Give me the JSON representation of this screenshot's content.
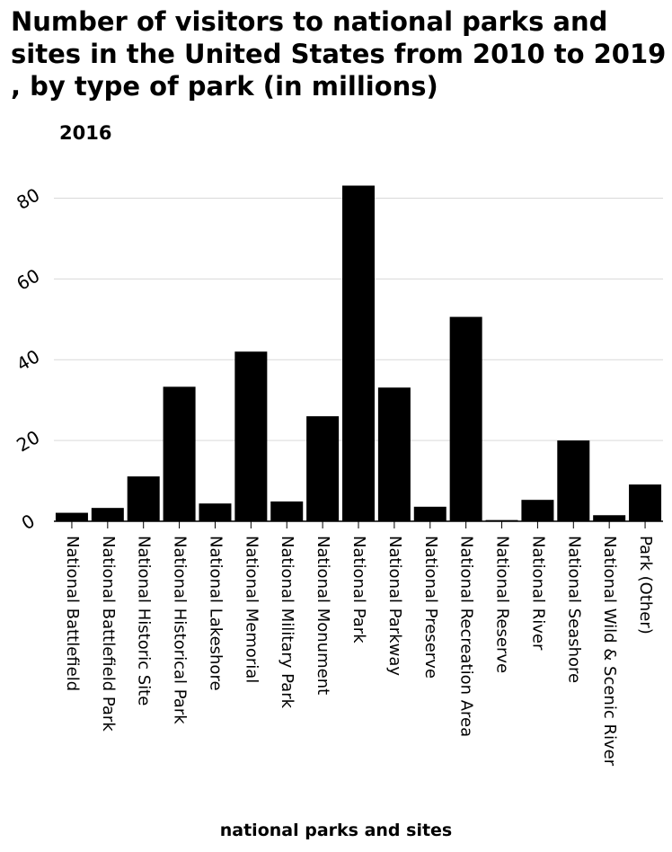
{
  "title": "Number of visitors to national parks and sites in the United States from 2010 to 2019 , by type of park (in millions)",
  "subtitle": "2016",
  "colors": {
    "bar": "#000000",
    "grid": "#d9d9d9",
    "axis": "#000000"
  },
  "chart_data": {
    "type": "bar",
    "title": "Number of visitors to national parks and sites in the United States from 2010 to 2019 , by type of park (in millions)",
    "subtitle": "2016",
    "xlabel": "national parks and sites",
    "ylabel": "",
    "ylim": [
      0,
      89
    ],
    "yticks": [
      0,
      20,
      40,
      60,
      80
    ],
    "grid": true,
    "categories": [
      "National Battlefield",
      "National Battlefield Park",
      "National Historic Site",
      "National Historical Park",
      "National Lakeshore",
      "National Memorial",
      "National Military Park",
      "National Monument",
      "National Park",
      "National Parkway",
      "National Preserve",
      "National Recreation Area",
      "National Reserve",
      "National River",
      "National Seashore",
      "National Wild & Scenic River",
      "Park (Other)"
    ],
    "values": [
      2.1,
      3.3,
      11.1,
      33.3,
      4.4,
      42.0,
      4.9,
      26.0,
      83.1,
      33.1,
      3.6,
      50.6,
      0.3,
      5.3,
      20.0,
      1.5,
      9.1
    ]
  }
}
